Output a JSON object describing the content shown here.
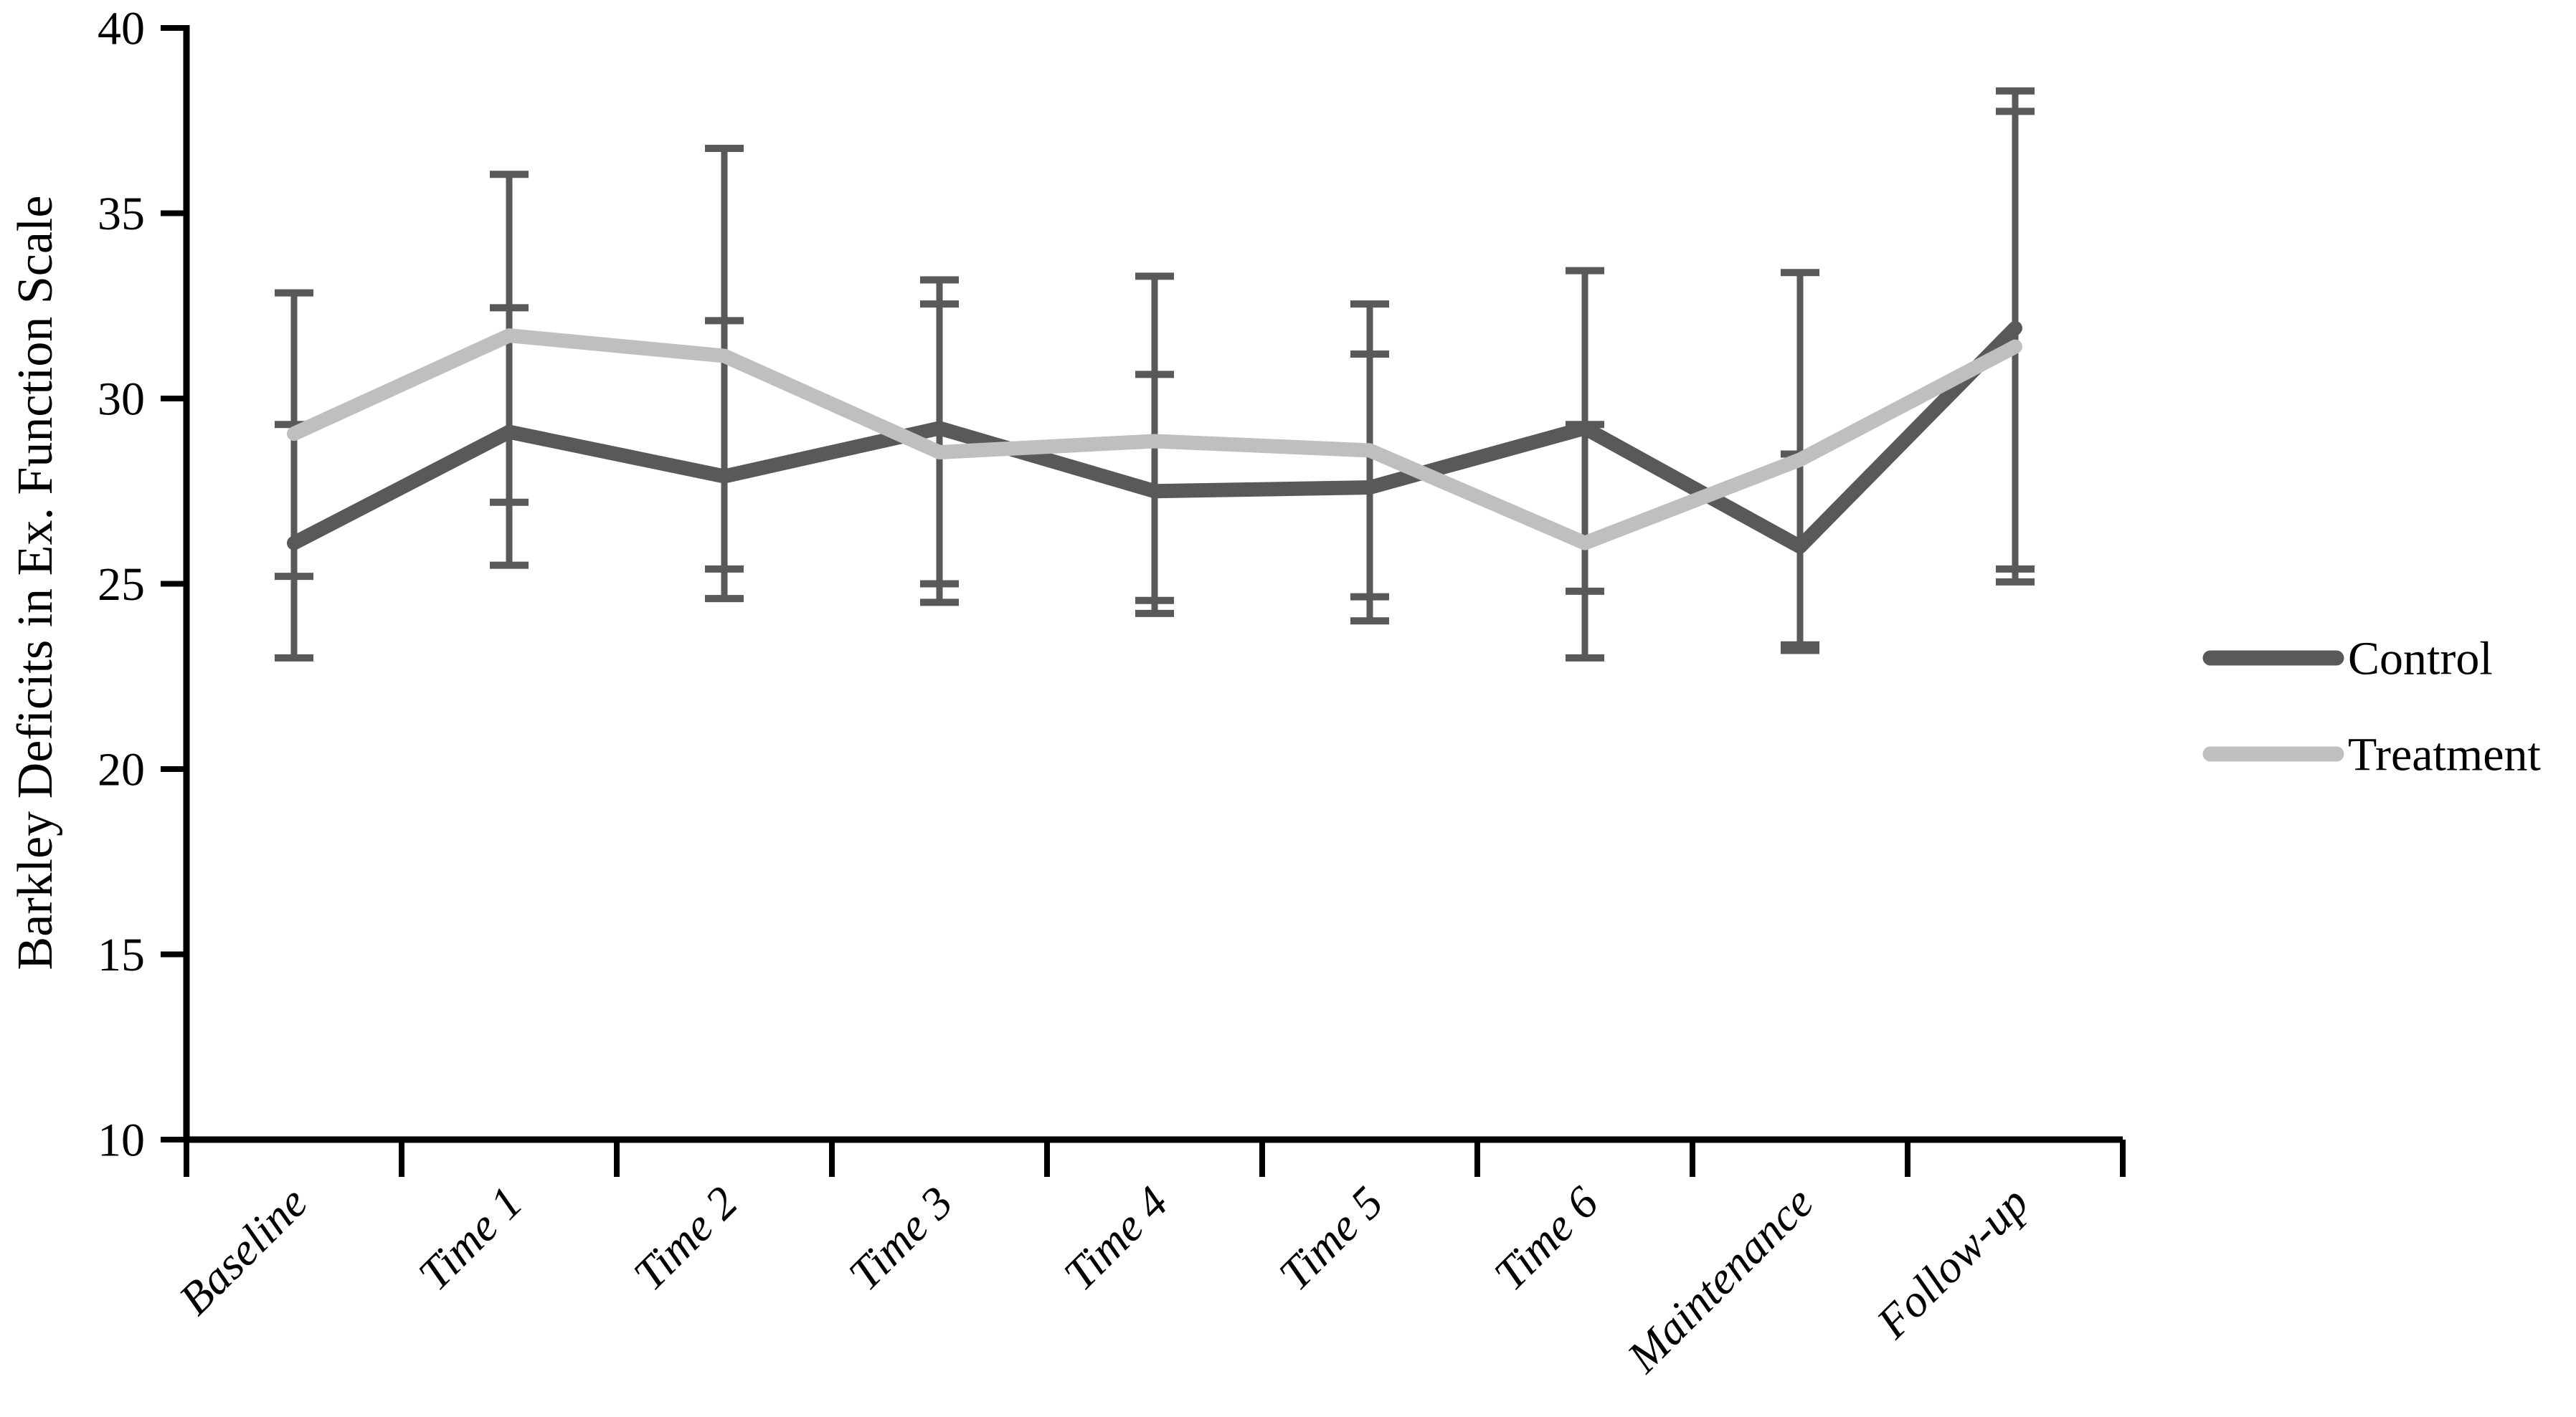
{
  "figure": {
    "background": "#ffffff",
    "axis_color": "#000000"
  },
  "chart_data": {
    "type": "line",
    "title": "",
    "xlabel": "",
    "ylabel": "Barkley Deficits in Ex. Function Scale",
    "categories": [
      "Baseline",
      "Time 1",
      "Time 2",
      "Time 3",
      "Time 4",
      "Time 5",
      "Time 6",
      "Maintenance",
      "Follow-up"
    ],
    "ylim": [
      10,
      40
    ],
    "yticks": [
      10,
      15,
      20,
      25,
      30,
      35,
      40
    ],
    "grid": false,
    "error_bars": true,
    "error_bar_color": "#595959",
    "legend_position": "right-middle",
    "series": [
      {
        "name": "Control",
        "color": "#595959",
        "values": [
          26.1,
          29.1,
          27.9,
          29.2,
          27.5,
          27.6,
          29.2,
          26.0,
          31.9
        ],
        "error_low": [
          23.0,
          25.5,
          24.6,
          25.0,
          24.55,
          24.0,
          24.8,
          23.2,
          25.4
        ],
        "error_high": [
          29.3,
          32.45,
          32.1,
          33.2,
          30.65,
          31.2,
          33.45,
          28.5,
          38.3
        ]
      },
      {
        "name": "Treatment",
        "color": "#bfbfbf",
        "values": [
          29.05,
          31.7,
          31.15,
          28.55,
          28.85,
          28.6,
          26.1,
          28.35,
          31.4
        ],
        "error_low": [
          25.2,
          27.2,
          25.4,
          24.5,
          24.2,
          24.65,
          23.0,
          23.35,
          25.05
        ],
        "error_high": [
          32.85,
          36.05,
          36.75,
          32.55,
          33.3,
          32.55,
          29.3,
          33.4,
          37.75
        ]
      }
    ]
  }
}
